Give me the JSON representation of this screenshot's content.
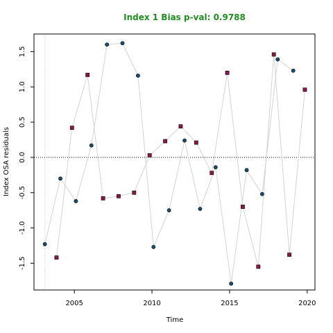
{
  "chart_data": {
    "type": "scatter",
    "title": "Index 1 Bias p-val: 0.9788",
    "title_color": "#228b22",
    "xlabel": "Time",
    "ylabel": "Index OSA residuals",
    "xlim": [
      2002.4,
      2020.5
    ],
    "ylim": [
      -1.88,
      1.75
    ],
    "x_ticks": [
      2005,
      2010,
      2015,
      2020
    ],
    "y_ticks": [
      -1.5,
      -1.0,
      -0.5,
      0.0,
      0.5,
      1.0,
      1.5
    ],
    "x_tick_labels": [
      "2005",
      "2010",
      "2015",
      "2020"
    ],
    "y_tick_labels": [
      "-1.5",
      "-1.0",
      "-0.5",
      "0.0",
      "0.5",
      "1.0",
      "1.5"
    ],
    "reference_line_y": 0.0,
    "start_marker_x": 2003.1,
    "line_color": "#d3d3d3",
    "series": [
      {
        "marker": "circle",
        "color": "#1b4f72",
        "x": [
          2003.1,
          2004.1,
          2005.1,
          2006.1,
          2007.1,
          2008.1,
          2009.1,
          2010.1,
          2011.1,
          2012.1,
          2013.1,
          2014.1,
          2015.1,
          2016.1,
          2017.1,
          2018.1,
          2019.1
        ],
        "y": [
          -1.23,
          -0.3,
          -0.62,
          0.17,
          1.6,
          1.62,
          1.16,
          -1.27,
          -0.75,
          0.24,
          -0.73,
          -0.14,
          -1.79,
          -0.18,
          -0.52,
          1.39,
          1.23
        ]
      },
      {
        "marker": "square",
        "color": "#8b1a4a",
        "x": [
          2003.85,
          2004.85,
          2005.85,
          2006.85,
          2007.85,
          2008.85,
          2009.85,
          2010.85,
          2011.85,
          2012.85,
          2013.85,
          2014.85,
          2015.85,
          2016.85,
          2017.85,
          2018.85,
          2019.85
        ],
        "y": [
          -1.42,
          0.42,
          1.17,
          -0.58,
          -0.55,
          -0.5,
          0.03,
          0.23,
          0.44,
          0.21,
          -0.22,
          1.2,
          -0.7,
          -1.55,
          1.46,
          -1.38,
          0.96
        ]
      }
    ]
  }
}
